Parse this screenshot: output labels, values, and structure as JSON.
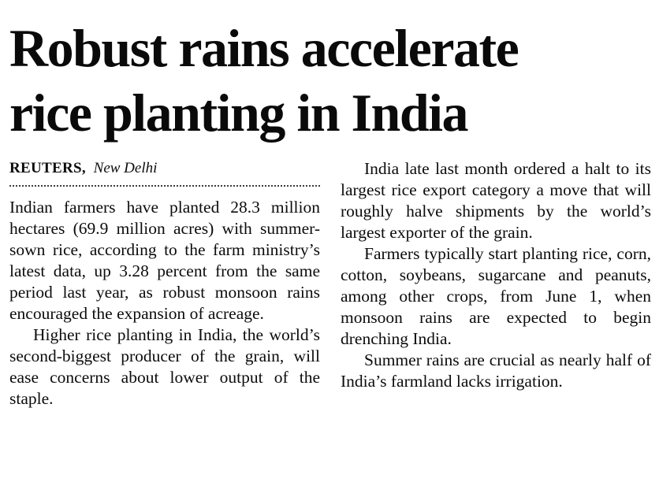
{
  "article": {
    "headline": {
      "line1": "Robust rains accelerate",
      "line2": "rice planting in India"
    },
    "byline": {
      "source": "REUTERS,",
      "location": "New Delhi"
    },
    "columns": {
      "left": [
        "Indian farmers have planted 28.3 million hectares (69.9 million acres) with summer-sown rice, according to the farm ministry’s latest data, up 3.28 percent from the same period last year, as robust monsoon rains encouraged the expansion of acreage.",
        "Higher rice planting in India, the world’s second-biggest producer of the grain, will ease concerns about lower output of the staple."
      ],
      "right": [
        "India late last month ordered a halt to its largest rice export category a move that will roughly halve shipments by the world’s largest exporter of the grain.",
        "Farmers typically start planting rice, corn, cotton, soybeans, sugarcane and peanuts, among other crops, from June 1, when monsoon rains are expected to begin drenching India.",
        "Summer rains are crucial as nearly half of India’s farmland lacks irrigation."
      ]
    }
  }
}
